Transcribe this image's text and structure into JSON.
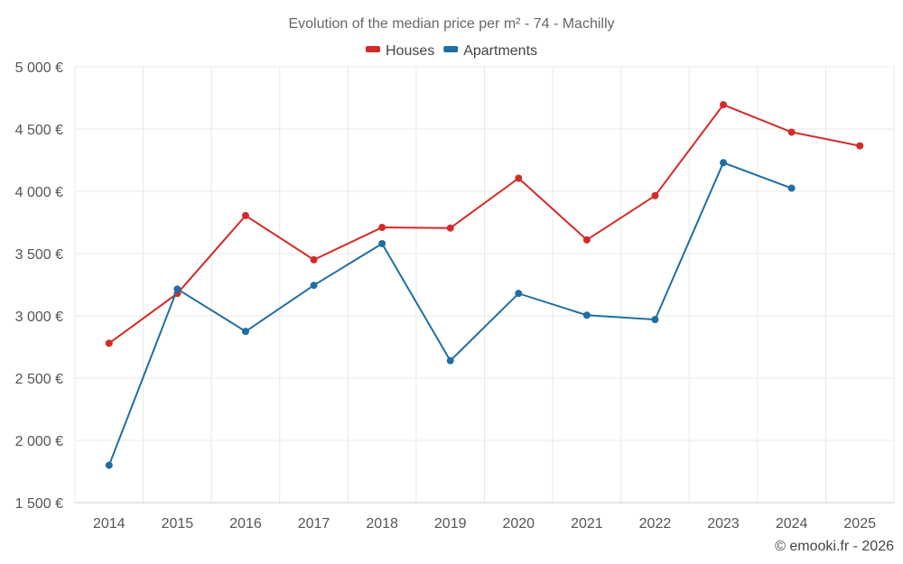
{
  "chart_data": {
    "type": "line",
    "title": "Evolution of the median price per m² - 74 - Machilly",
    "categories": [
      "2014",
      "2015",
      "2016",
      "2017",
      "2018",
      "2019",
      "2020",
      "2021",
      "2022",
      "2023",
      "2024",
      "2025"
    ],
    "series": [
      {
        "name": "Houses",
        "color": "#d42a2a",
        "values": [
          2780,
          3180,
          3805,
          3450,
          3710,
          3705,
          4105,
          3610,
          3965,
          4695,
          4475,
          4365
        ]
      },
      {
        "name": "Apartments",
        "color": "#1f6ea3",
        "values": [
          1800,
          3215,
          2875,
          3245,
          3580,
          2640,
          3180,
          3005,
          2970,
          4230,
          4025,
          null
        ]
      }
    ],
    "ylim": [
      1500,
      5000
    ],
    "yticks": [
      1500,
      2000,
      2500,
      3000,
      3500,
      4000,
      4500,
      5000
    ],
    "ytick_labels": [
      "1 500 €",
      "2 000 €",
      "2 500 €",
      "3 000 €",
      "3 500 €",
      "4 000 €",
      "4 500 €",
      "5 000 €"
    ],
    "xlabel": "",
    "ylabel": "",
    "grid": true,
    "legend_position": "top-center"
  },
  "credit": "© emooki.fr - 2026"
}
